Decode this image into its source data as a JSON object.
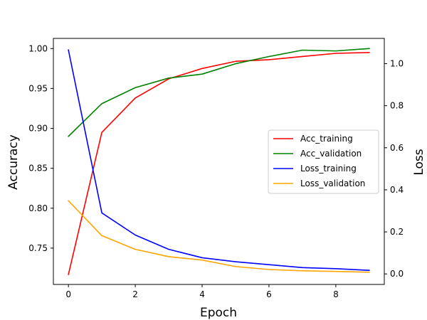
{
  "chart_data": {
    "type": "line",
    "xlabel": "Epoch",
    "ylabel_left": "Accuracy",
    "ylabel_right": "Loss",
    "x": [
      0,
      1,
      2,
      3,
      4,
      5,
      6,
      7,
      8,
      9
    ],
    "xlim": [
      -0.45,
      9.45
    ],
    "xticks": [
      0,
      2,
      4,
      6,
      8
    ],
    "ylim_left": [
      0.7045,
      1.0127
    ],
    "yticks_left": [
      0.75,
      0.8,
      0.85,
      0.9,
      0.95,
      1.0
    ],
    "ytick_labels_left": [
      "0.75",
      "0.80",
      "0.85",
      "0.90",
      "0.95",
      "1.00"
    ],
    "ylim_right": [
      -0.05,
      1.12
    ],
    "yticks_right": [
      0.0,
      0.2,
      0.4,
      0.6,
      0.8,
      1.0
    ],
    "ytick_labels_right": [
      "0.0",
      "0.2",
      "0.4",
      "0.6",
      "0.8",
      "1.0"
    ],
    "legend_position": "center-right",
    "grid": false,
    "series": [
      {
        "name": "Acc_training",
        "axis": "left",
        "color": "#ff0000",
        "values": [
          0.717,
          0.895,
          0.938,
          0.962,
          0.975,
          0.984,
          0.986,
          0.99,
          0.994,
          0.995
        ]
      },
      {
        "name": "Acc_validation",
        "axis": "left",
        "color": "#008000",
        "values": [
          0.89,
          0.931,
          0.951,
          0.963,
          0.968,
          0.981,
          0.99,
          0.998,
          0.997,
          1.0
        ]
      },
      {
        "name": "Loss_training",
        "axis": "right",
        "color": "#0000ff",
        "values": [
          1.065,
          0.29,
          0.185,
          0.117,
          0.077,
          0.058,
          0.044,
          0.03,
          0.025,
          0.017
        ]
      },
      {
        "name": "Loss_validation",
        "axis": "right",
        "color": "#ffa500",
        "values": [
          0.348,
          0.182,
          0.117,
          0.082,
          0.066,
          0.035,
          0.021,
          0.015,
          0.012,
          0.008
        ]
      }
    ]
  }
}
